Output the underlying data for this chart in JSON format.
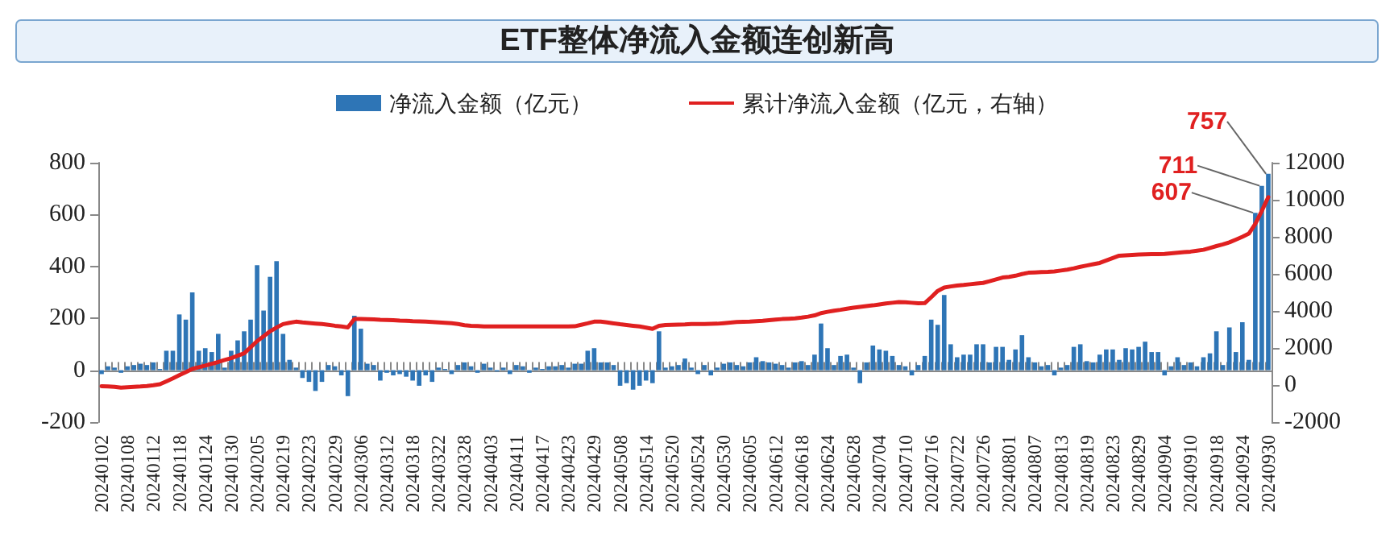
{
  "chart_data": {
    "type": "bar",
    "title": "ETF整体净流入金额连创新高",
    "categories": [
      "20240102",
      null,
      null,
      null,
      "20240108",
      null,
      null,
      null,
      "20240112",
      null,
      null,
      null,
      "20240118",
      null,
      null,
      null,
      "20240124",
      null,
      null,
      null,
      "20240130",
      null,
      null,
      null,
      "20240205",
      null,
      null,
      null,
      "20240219",
      null,
      null,
      null,
      "20240223",
      null,
      null,
      null,
      "20240229",
      null,
      null,
      null,
      "20240306",
      null,
      null,
      null,
      "20240312",
      null,
      null,
      null,
      "20240318",
      null,
      null,
      null,
      "20240322",
      null,
      null,
      null,
      "20240328",
      null,
      null,
      null,
      "20240403",
      null,
      null,
      null,
      "20240411",
      null,
      null,
      null,
      "20240417",
      null,
      null,
      null,
      "20240423",
      null,
      null,
      null,
      "20240429",
      null,
      null,
      null,
      "20240508",
      null,
      null,
      null,
      "20240514",
      null,
      null,
      null,
      "20240520",
      null,
      null,
      null,
      "20240524",
      null,
      null,
      null,
      "20240530",
      null,
      null,
      null,
      "20240605",
      null,
      null,
      null,
      "20240612",
      null,
      null,
      null,
      "20240618",
      null,
      null,
      null,
      "20240624",
      null,
      null,
      null,
      "20240628",
      null,
      null,
      null,
      "20240704",
      null,
      null,
      null,
      "20240710",
      null,
      null,
      null,
      "20240716",
      null,
      null,
      null,
      "20240722",
      null,
      null,
      null,
      "20240726",
      null,
      null,
      null,
      "20240801",
      null,
      null,
      null,
      "20240807",
      null,
      null,
      null,
      "20240813",
      null,
      null,
      null,
      "20240819",
      null,
      null,
      null,
      "20240823",
      null,
      null,
      null,
      "20240829",
      null,
      null,
      null,
      "20240904",
      null,
      null,
      null,
      "20240910",
      null,
      null,
      null,
      "20240918",
      null,
      null,
      null,
      "20240924",
      null,
      null,
      null,
      "20240930"
    ],
    "series": [
      {
        "name": "净流入金额（亿元）",
        "color": "#2e75b6",
        "values": [
          -15,
          15,
          10,
          -10,
          15,
          20,
          25,
          20,
          30,
          5,
          75,
          75,
          215,
          195,
          300,
          75,
          85,
          70,
          140,
          10,
          75,
          115,
          150,
          195,
          405,
          230,
          360,
          420,
          140,
          40,
          10,
          -30,
          -45,
          -80,
          -45,
          20,
          15,
          -20,
          -100,
          210,
          160,
          25,
          20,
          -40,
          -10,
          -20,
          -15,
          -25,
          -40,
          -60,
          -20,
          -45,
          10,
          5,
          -15,
          20,
          30,
          15,
          -10,
          25,
          10,
          -5,
          10,
          -15,
          20,
          15,
          -10,
          10,
          5,
          15,
          15,
          20,
          10,
          25,
          25,
          75,
          85,
          30,
          30,
          20,
          -60,
          -50,
          -75,
          -60,
          -40,
          -50,
          150,
          10,
          15,
          20,
          45,
          10,
          -15,
          20,
          -20,
          10,
          25,
          30,
          20,
          15,
          30,
          50,
          35,
          30,
          25,
          20,
          10,
          30,
          35,
          20,
          60,
          180,
          85,
          20,
          55,
          60,
          10,
          -50,
          30,
          95,
          80,
          75,
          55,
          20,
          15,
          -20,
          20,
          55,
          195,
          175,
          290,
          100,
          50,
          60,
          60,
          100,
          100,
          30,
          90,
          90,
          40,
          80,
          135,
          50,
          30,
          15,
          20,
          -20,
          10,
          20,
          90,
          100,
          35,
          30,
          60,
          80,
          80,
          40,
          85,
          80,
          90,
          110,
          70,
          70,
          -20,
          15,
          50,
          20,
          30,
          15,
          50,
          65,
          150,
          20,
          165,
          70,
          185,
          40,
          607,
          711,
          757
        ],
        "value_labels": [
          null,
          null,
          null,
          null,
          null,
          null,
          null,
          null,
          null,
          null,
          null,
          null,
          null,
          null,
          null,
          null,
          null,
          null,
          null,
          null,
          null,
          null,
          null,
          null,
          null,
          null,
          null,
          null,
          null,
          null,
          null,
          null,
          null,
          null,
          null,
          null,
          null,
          null,
          null,
          null,
          null,
          null,
          null,
          null,
          null,
          null,
          null,
          null,
          null,
          null,
          null,
          null,
          null,
          null,
          null,
          null,
          null,
          null,
          null,
          null,
          null,
          null,
          null,
          null,
          null,
          null,
          null,
          null,
          null,
          null,
          null,
          null,
          null,
          null,
          null,
          null,
          null,
          null,
          null,
          null,
          null,
          null,
          null,
          null,
          null,
          null,
          null,
          null,
          null,
          null,
          null,
          null,
          null,
          null,
          null,
          null,
          null,
          null,
          null,
          null,
          null,
          null,
          null,
          null,
          null,
          null,
          null,
          null,
          null,
          null,
          null,
          null,
          null,
          null,
          null,
          null,
          null,
          null,
          null,
          null,
          null,
          null,
          null,
          null,
          null,
          null,
          null,
          null,
          null,
          null,
          null,
          null,
          null,
          null,
          null,
          null,
          null,
          null,
          null,
          null,
          null,
          null,
          null,
          null,
          null,
          null,
          null,
          null,
          null,
          null,
          null,
          null,
          null,
          null,
          null,
          null,
          null,
          null,
          null,
          null,
          null,
          null,
          null,
          null,
          null,
          null,
          null,
          null,
          null,
          null,
          null,
          null,
          null,
          null,
          null,
          null,
          null,
          null,
          "607",
          "711",
          "757"
        ]
      },
      {
        "name": "累计净流入金额（亿元，右轴）",
        "type": "line",
        "axis": "y2",
        "color": "#e02020",
        "values": [
          -60,
          -80,
          -100,
          -140,
          -120,
          -100,
          -80,
          -50,
          -10,
          40,
          200,
          360,
          530,
          700,
          870,
          960,
          1050,
          1150,
          1240,
          1350,
          1450,
          1580,
          1710,
          2040,
          2370,
          2630,
          2900,
          3100,
          3290,
          3360,
          3420,
          3380,
          3350,
          3320,
          3290,
          3250,
          3200,
          3160,
          3110,
          3560,
          3560,
          3550,
          3540,
          3520,
          3510,
          3500,
          3480,
          3470,
          3450,
          3440,
          3420,
          3400,
          3380,
          3360,
          3340,
          3290,
          3230,
          3200,
          3180,
          3160,
          3160,
          3160,
          3160,
          3160,
          3160,
          3160,
          3160,
          3160,
          3160,
          3160,
          3160,
          3160,
          3160,
          3170,
          3250,
          3330,
          3420,
          3420,
          3380,
          3330,
          3280,
          3240,
          3200,
          3160,
          3100,
          3030,
          3200,
          3240,
          3250,
          3260,
          3270,
          3290,
          3290,
          3290,
          3300,
          3310,
          3340,
          3370,
          3400,
          3410,
          3420,
          3450,
          3470,
          3500,
          3530,
          3560,
          3580,
          3600,
          3640,
          3690,
          3760,
          3880,
          3950,
          4010,
          4060,
          4120,
          4170,
          4220,
          4260,
          4300,
          4350,
          4400,
          4440,
          4480,
          4470,
          4440,
          4410,
          4420,
          4740,
          5080,
          5260,
          5320,
          5370,
          5400,
          5440,
          5480,
          5510,
          5600,
          5700,
          5800,
          5840,
          5900,
          5990,
          6060,
          6080,
          6100,
          6110,
          6130,
          6180,
          6230,
          6300,
          6380,
          6450,
          6520,
          6590,
          6720,
          6850,
          6980,
          7000,
          7020,
          7040,
          7050,
          7060,
          7070,
          7080,
          7110,
          7140,
          7170,
          7200,
          7250,
          7300,
          7400,
          7500,
          7590,
          7700,
          7850,
          8000,
          8170,
          8700,
          9400,
          10140
        ]
      }
    ],
    "ylim": [
      -200,
      800
    ],
    "yticks": [
      -200,
      0,
      200,
      400,
      600,
      800
    ],
    "y2lim": [
      -2000,
      12000
    ],
    "y2ticks": [
      -2000,
      0,
      2000,
      4000,
      6000,
      8000,
      10000,
      12000
    ],
    "legend": "top",
    "marker": "none"
  }
}
